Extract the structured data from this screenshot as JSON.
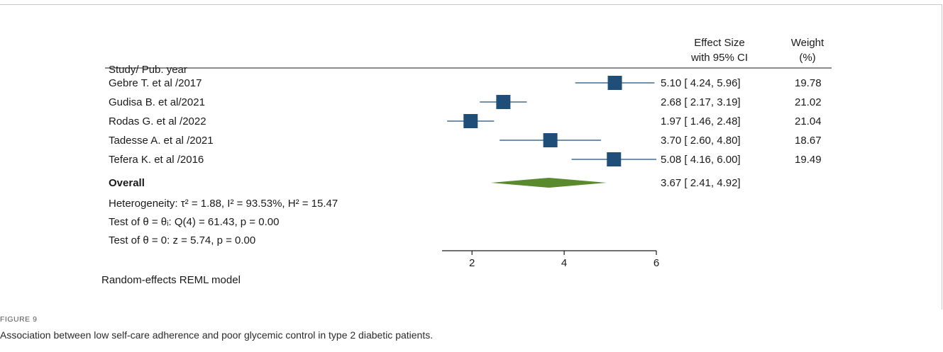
{
  "chart_data": {
    "type": "forest",
    "headers": {
      "study": "Study/ Pub. year",
      "effect_line1": "Effect Size",
      "effect_line2": "with 95% CI",
      "weight_line1": "Weight",
      "weight_line2": "(%)"
    },
    "studies": [
      {
        "label": "Gebre T. et al /2017",
        "effect": 5.1,
        "ci_low": 4.24,
        "ci_high": 5.96,
        "ci_text": "5.10 [ 4.24, 5.96]",
        "weight": "19.78"
      },
      {
        "label": "Gudisa B. et al/2021",
        "effect": 2.68,
        "ci_low": 2.17,
        "ci_high": 3.19,
        "ci_text": "2.68 [ 2.17, 3.19]",
        "weight": "21.02"
      },
      {
        "label": "Rodas G. et al /2022",
        "effect": 1.97,
        "ci_low": 1.46,
        "ci_high": 2.48,
        "ci_text": "1.97 [ 1.46, 2.48]",
        "weight": "21.04"
      },
      {
        "label": "Tadesse A. et al /2021",
        "effect": 3.7,
        "ci_low": 2.6,
        "ci_high": 4.8,
        "ci_text": "3.70 [ 2.60, 4.80]",
        "weight": "18.67"
      },
      {
        "label": "Tefera K. et al /2016",
        "effect": 5.08,
        "ci_low": 4.16,
        "ci_high": 6.0,
        "ci_text": "5.08 [ 4.16, 6.00]",
        "weight": "19.49"
      }
    ],
    "overall": {
      "label": "Overall",
      "effect": 3.67,
      "ci_low": 2.41,
      "ci_high": 4.92,
      "ci_text": "3.67 [ 2.41, 4.92]"
    },
    "stats": {
      "heterogeneity": "Heterogeneity: τ² = 1.88, I² = 93.53%, H² = 15.47",
      "test_theta_i": "Test of θ = θᵢ: Q(4) = 61.43, p = 0.00",
      "test_theta_0": "Test of θ = 0: z = 5.74, p = 0.00"
    },
    "xlim": [
      1.35,
      6.0
    ],
    "xticks": [
      2,
      4,
      6
    ],
    "model_label": "Random-effects REML model",
    "marker_color": "#1f4e79",
    "diamond_color": "#5b8a2e"
  },
  "caption": {
    "label": "FIGURE 9",
    "text": "Association between low self-care adherence and poor glycemic control in type 2 diabetic patients."
  }
}
